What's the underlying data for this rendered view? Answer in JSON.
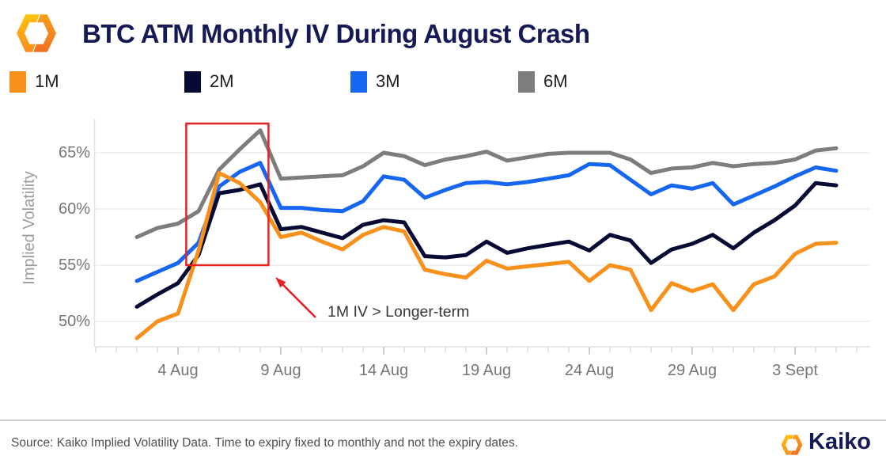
{
  "header": {
    "title": "BTC ATM Monthly IV During August Crash"
  },
  "legend": [
    {
      "label": "1M",
      "color": "#F8911B"
    },
    {
      "label": "2M",
      "color": "#070B34"
    },
    {
      "label": "3M",
      "color": "#1766F2"
    },
    {
      "label": "6M",
      "color": "#7D7D7D"
    }
  ],
  "annotation": {
    "text": "1M IV > Longer-term",
    "color": "#E52322"
  },
  "footer": {
    "source": "Source: Kaiko Implied Volatility Data. Time to expiry fixed to monthly and not the expiry dates.",
    "brand": "Kaiko"
  },
  "chart_data": {
    "type": "line",
    "title": "BTC ATM Monthly IV During August Crash",
    "xlabel": "",
    "ylabel": "Implied Volatility",
    "ylim": [
      48,
      68
    ],
    "grid": "horizontal",
    "legend_position": "top",
    "ytick_values": [
      50,
      55,
      60,
      65
    ],
    "ytick_labels": [
      "50%",
      "55%",
      "60%",
      "65%"
    ],
    "xtick_labels": [
      "4 Aug",
      "9 Aug",
      "14 Aug",
      "19 Aug",
      "24 Aug",
      "29 Aug",
      "3 Sept"
    ],
    "xtick_indices": [
      2,
      7,
      12,
      17,
      22,
      27,
      32
    ],
    "x_dates": [
      "2 Aug",
      "3 Aug",
      "4 Aug",
      "5 Aug",
      "6 Aug",
      "7 Aug",
      "8 Aug",
      "9 Aug",
      "10 Aug",
      "11 Aug",
      "12 Aug",
      "13 Aug",
      "14 Aug",
      "15 Aug",
      "16 Aug",
      "17 Aug",
      "18 Aug",
      "19 Aug",
      "20 Aug",
      "21 Aug",
      "22 Aug",
      "23 Aug",
      "24 Aug",
      "25 Aug",
      "26 Aug",
      "27 Aug",
      "28 Aug",
      "29 Aug",
      "30 Aug",
      "31 Aug",
      "1 Sept",
      "2 Sept",
      "3 Sept",
      "4 Sept",
      "5 Sept"
    ],
    "series": [
      {
        "name": "1M",
        "color": "#F8911B",
        "values": [
          48.5,
          50.0,
          50.7,
          56.3,
          63.2,
          62.3,
          60.6,
          57.5,
          57.9,
          57.1,
          56.4,
          57.7,
          58.4,
          58.0,
          54.6,
          54.2,
          53.9,
          55.4,
          54.7,
          54.9,
          55.1,
          55.3,
          53.6,
          55.0,
          54.6,
          51.0,
          53.4,
          52.7,
          53.3,
          51.0,
          53.3,
          54.0,
          56.0,
          56.9,
          57.0
        ]
      },
      {
        "name": "2M",
        "color": "#070B34",
        "values": [
          51.3,
          52.4,
          53.4,
          55.9,
          61.4,
          61.7,
          62.2,
          58.2,
          58.4,
          57.9,
          57.4,
          58.6,
          59.0,
          58.8,
          55.8,
          55.7,
          55.9,
          57.1,
          56.1,
          56.5,
          56.8,
          57.1,
          56.3,
          57.7,
          57.2,
          55.2,
          56.4,
          56.9,
          57.7,
          56.5,
          57.9,
          59.0,
          60.3,
          62.3,
          62.1
        ]
      },
      {
        "name": "3M",
        "color": "#1766F2",
        "values": [
          53.6,
          54.4,
          55.2,
          57.0,
          62.0,
          63.3,
          64.1,
          60.1,
          60.1,
          59.9,
          59.8,
          60.7,
          62.9,
          62.6,
          61.0,
          61.7,
          62.3,
          62.4,
          62.2,
          62.4,
          62.7,
          63.0,
          64.0,
          63.9,
          62.6,
          61.3,
          62.1,
          61.8,
          62.3,
          60.4,
          61.2,
          62.0,
          62.9,
          63.7,
          63.4
        ]
      },
      {
        "name": "6M",
        "color": "#7D7D7D",
        "values": [
          57.5,
          58.3,
          58.7,
          59.8,
          63.5,
          65.3,
          67.0,
          62.7,
          62.8,
          62.9,
          63.0,
          63.8,
          65.0,
          64.7,
          63.9,
          64.4,
          64.7,
          65.1,
          64.3,
          64.6,
          64.9,
          65.0,
          65.0,
          65.0,
          64.4,
          63.2,
          63.6,
          63.7,
          64.1,
          63.8,
          64.0,
          64.1,
          64.4,
          65.2,
          65.4
        ]
      }
    ],
    "highlight_box": {
      "x_from_index": 2.4,
      "x_to_index": 6.4,
      "y_top": 67.6,
      "y_bottom": 55.0
    }
  }
}
